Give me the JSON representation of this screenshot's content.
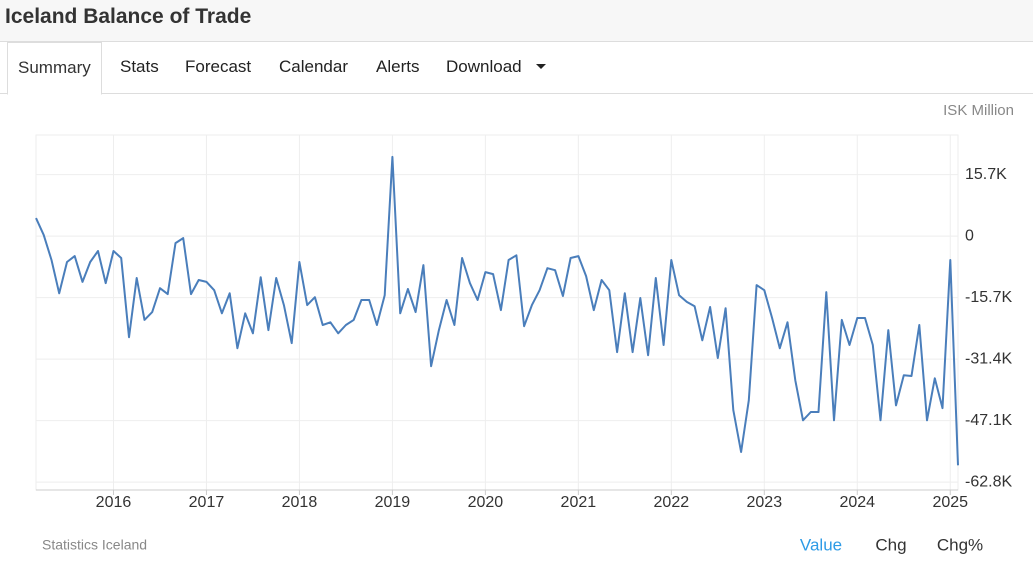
{
  "header": {
    "title": "Iceland Balance of Trade"
  },
  "tabs": [
    "Summary",
    "Stats",
    "Forecast",
    "Calendar",
    "Alerts",
    "Download"
  ],
  "footer": {
    "source": "Statistics Iceland",
    "buttons": [
      "Value",
      "Chg",
      "Chg%"
    ]
  },
  "chart_data": {
    "type": "line",
    "unit_label": "ISK Million",
    "color": "#4a7ebb",
    "grid": true,
    "x": [
      "2015-03",
      "2015-04",
      "2015-05",
      "2015-06",
      "2015-07",
      "2015-08",
      "2015-09",
      "2015-10",
      "2015-11",
      "2015-12",
      "2016-01",
      "2016-02",
      "2016-03",
      "2016-04",
      "2016-05",
      "2016-06",
      "2016-07",
      "2016-08",
      "2016-09",
      "2016-10",
      "2016-11",
      "2016-12",
      "2017-01",
      "2017-02",
      "2017-03",
      "2017-04",
      "2017-05",
      "2017-06",
      "2017-07",
      "2017-08",
      "2017-09",
      "2017-10",
      "2017-11",
      "2017-12",
      "2018-01",
      "2018-02",
      "2018-03",
      "2018-04",
      "2018-05",
      "2018-06",
      "2018-07",
      "2018-08",
      "2018-09",
      "2018-10",
      "2018-11",
      "2018-12",
      "2019-01",
      "2019-02",
      "2019-03",
      "2019-04",
      "2019-05",
      "2019-06",
      "2019-07",
      "2019-08",
      "2019-09",
      "2019-10",
      "2019-11",
      "2019-12",
      "2020-01",
      "2020-02",
      "2020-03",
      "2020-04",
      "2020-05",
      "2020-06",
      "2020-07",
      "2020-08",
      "2020-09",
      "2020-10",
      "2020-11",
      "2020-12",
      "2021-01",
      "2021-02",
      "2021-03",
      "2021-04",
      "2021-05",
      "2021-06",
      "2021-07",
      "2021-08",
      "2021-09",
      "2021-10",
      "2021-11",
      "2021-12",
      "2022-01",
      "2022-02",
      "2022-03",
      "2022-04",
      "2022-05",
      "2022-06",
      "2022-07",
      "2022-08",
      "2022-09",
      "2022-10",
      "2022-11",
      "2022-12",
      "2023-01",
      "2023-02",
      "2023-03",
      "2023-04",
      "2023-05",
      "2023-06",
      "2023-07",
      "2023-08",
      "2023-09",
      "2023-10",
      "2023-11",
      "2023-12",
      "2024-01",
      "2024-02",
      "2024-03",
      "2024-04",
      "2024-05",
      "2024-06",
      "2024-07",
      "2024-08",
      "2024-09",
      "2024-10",
      "2024-11",
      "2024-12",
      "2025-01",
      "2025-02"
    ],
    "values": [
      4600,
      300,
      -6100,
      -14600,
      -6600,
      -5100,
      -11700,
      -6600,
      -3800,
      -12000,
      -3800,
      -5600,
      -25800,
      -10700,
      -21400,
      -19400,
      -13300,
      -14800,
      -1800,
      -500,
      -14800,
      -11200,
      -11700,
      -13800,
      -19700,
      -14600,
      -28600,
      -19700,
      -24800,
      -10500,
      -24000,
      -10700,
      -17600,
      -27300,
      -6600,
      -17600,
      -15600,
      -22700,
      -22000,
      -24800,
      -22700,
      -21400,
      -16300,
      -16300,
      -22700,
      -15100,
      20200,
      -19700,
      -13500,
      -19400,
      -7400,
      -33200,
      -24000,
      -16300,
      -22700,
      -5600,
      -12000,
      -16300,
      -9200,
      -9700,
      -18900,
      -6100,
      -4900,
      -23000,
      -17600,
      -13800,
      -8200,
      -8700,
      -15300,
      -5600,
      -5100,
      -10200,
      -18900,
      -11200,
      -13800,
      -29600,
      -14600,
      -29600,
      -15800,
      -30400,
      -10700,
      -27800,
      -6100,
      -15100,
      -16800,
      -17900,
      -26600,
      -18100,
      -31100,
      -18400,
      -44400,
      -55100,
      -41900,
      -12500,
      -13800,
      -20900,
      -28600,
      -22000,
      -36800,
      -47000,
      -44900,
      -44900,
      -14300,
      -47000,
      -21400,
      -27800,
      -20900,
      -20900,
      -27800,
      -47000,
      -24000,
      -43200,
      -35500,
      -35700,
      -22700,
      -47000,
      -36300,
      -43900,
      -6100,
      -58500
    ],
    "xticks": [
      2016,
      2017,
      2018,
      2019,
      2020,
      2021,
      2022,
      2023,
      2024,
      2025
    ],
    "ylim": [
      -64800,
      25800
    ],
    "yticks": [
      {
        "value": 15700,
        "label": "15.7K"
      },
      0,
      {
        "value": -15700,
        "label": "-15.7K"
      },
      {
        "value": -31400,
        "label": "-31.4K"
      },
      {
        "value": -47100,
        "label": "-47.1K"
      },
      {
        "value": -62800,
        "label": "-62.8K"
      }
    ]
  }
}
